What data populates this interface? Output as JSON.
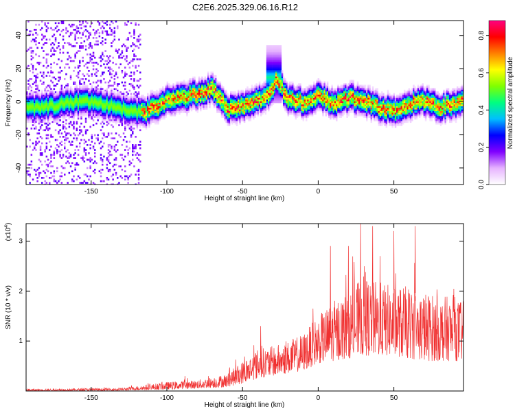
{
  "title": "C2E6.2025.329.06.16.R12",
  "chart_data": [
    {
      "type": "heatmap",
      "xlabel": "Height of straight line (km)",
      "ylabel": "Frequency (Hz)",
      "xlim": [
        -193,
        96
      ],
      "ylim": [
        -50,
        49
      ],
      "xticks": [
        -150,
        -100,
        -50,
        0,
        50
      ],
      "yticks": [
        -40,
        -20,
        0,
        20,
        40
      ],
      "xtick_labels": [
        "-150",
        "-100",
        "-50",
        "0",
        "50"
      ],
      "ytick_labels": [
        "-40",
        "-20",
        "0",
        "20",
        "40"
      ],
      "ridge": {
        "description": "dominant frequency band around 0 Hz",
        "x": [
          -190,
          -175,
          -165,
          -150,
          -125,
          -115,
          -100,
          -85,
          -70,
          -60,
          -50,
          -40,
          -32,
          -28,
          -20,
          -10,
          0,
          10,
          20,
          30,
          40,
          50,
          60,
          70,
          80,
          90,
          95
        ],
        "y": [
          -3,
          -2,
          0,
          1,
          -5,
          -6,
          1,
          4,
          8,
          -4,
          -2,
          1,
          6,
          14,
          2,
          0,
          4,
          -1,
          3,
          1,
          -3,
          -5,
          -1,
          1,
          -3,
          -1,
          2
        ]
      },
      "colorbar": {
        "label": "Normalized spectral amplitude",
        "range": [
          0,
          0.88
        ],
        "ticks": [
          0.0,
          0.2,
          0.4,
          0.6,
          0.8
        ],
        "tick_labels": [
          "0.0",
          "0.2",
          "0.4",
          "0.6",
          "0.8"
        ],
        "colors": [
          "#ffffff",
          "#e6b3ff",
          "#8000ff",
          "#0000ff",
          "#00bfff",
          "#00ff80",
          "#80ff00",
          "#ffff00",
          "#ff8000",
          "#ff0000",
          "#ff0080"
        ]
      }
    },
    {
      "type": "line",
      "xlabel": "Height of straight line (km)",
      "ylabel": "SNR (10 * v/v)",
      "scale_note": "(x10",
      "scale_exp": "4",
      "scale_close": ")",
      "xlim": [
        -193,
        96
      ],
      "ylim": [
        0,
        3.35
      ],
      "xticks": [
        -150,
        -100,
        -50,
        0,
        50
      ],
      "yticks": [
        1,
        2,
        3
      ],
      "xtick_labels": [
        "-150",
        "-100",
        "-50",
        "0",
        "50"
      ],
      "ytick_labels": [
        "1",
        "2",
        "3"
      ],
      "series": [
        {
          "name": "SNR",
          "color": "#f03030",
          "envelope_x": [
            -193,
            -130,
            -115,
            -100,
            -80,
            -60,
            -50,
            -40,
            -30,
            -20,
            -10,
            0,
            10,
            20,
            30,
            40,
            50,
            60,
            70,
            80,
            90,
            96
          ],
          "envelope_upper": [
            0.04,
            0.06,
            0.12,
            0.18,
            0.22,
            0.35,
            0.6,
            0.85,
            0.9,
            1.0,
            1.15,
            1.5,
            1.8,
            2.0,
            2.3,
            2.2,
            2.1,
            2.1,
            2.0,
            1.9,
            1.9,
            1.8
          ],
          "envelope_lower": [
            0.0,
            0.01,
            0.02,
            0.03,
            0.05,
            0.08,
            0.15,
            0.25,
            0.3,
            0.35,
            0.4,
            0.55,
            0.6,
            0.65,
            0.7,
            0.7,
            0.7,
            0.65,
            0.6,
            0.6,
            0.6,
            0.6
          ],
          "peaks": [
            {
              "x": 28,
              "y": 3.35
            },
            {
              "x": 36,
              "y": 3.3
            },
            {
              "x": 50,
              "y": 3.2
            },
            {
              "x": 64,
              "y": 3.3
            },
            {
              "x": 8,
              "y": 2.9
            },
            {
              "x": 20,
              "y": 2.9
            },
            {
              "x": -38,
              "y": 1.3
            },
            {
              "x": -88,
              "y": 0.3
            }
          ]
        }
      ]
    }
  ]
}
